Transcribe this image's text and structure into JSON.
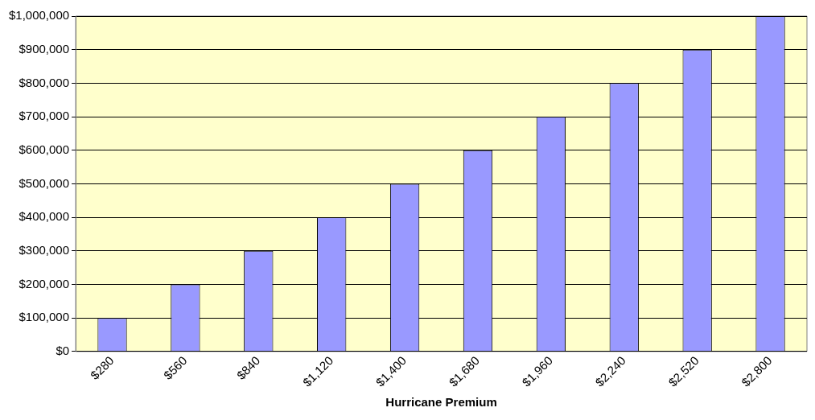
{
  "chart_data": {
    "type": "bar",
    "xlabel": "Hurricane Premium",
    "categories": [
      "$280",
      "$560",
      "$840",
      "$1,120",
      "$1,400",
      "$1,680",
      "$1,960",
      "$2,240",
      "$2,520",
      "$2,800"
    ],
    "values": [
      100000,
      200000,
      300000,
      400000,
      500000,
      600000,
      700000,
      800000,
      900000,
      1000000
    ],
    "color": "#9999ff",
    "ylim": [
      0,
      1000000
    ],
    "yticks": [
      {
        "value": 0,
        "label": "$0"
      },
      {
        "value": 100000,
        "label": "$100,000"
      },
      {
        "value": 200000,
        "label": "$200,000"
      },
      {
        "value": 300000,
        "label": "$300,000"
      },
      {
        "value": 400000,
        "label": "$400,000"
      },
      {
        "value": 500000,
        "label": "$500,000"
      },
      {
        "value": 600000,
        "label": "$600,000"
      },
      {
        "value": 700000,
        "label": "$700,000"
      },
      {
        "value": 800000,
        "label": "$800,000"
      },
      {
        "value": 900000,
        "label": "$900,000"
      },
      {
        "value": 1000000,
        "label": "$1,000,000"
      }
    ],
    "grid": "y"
  }
}
